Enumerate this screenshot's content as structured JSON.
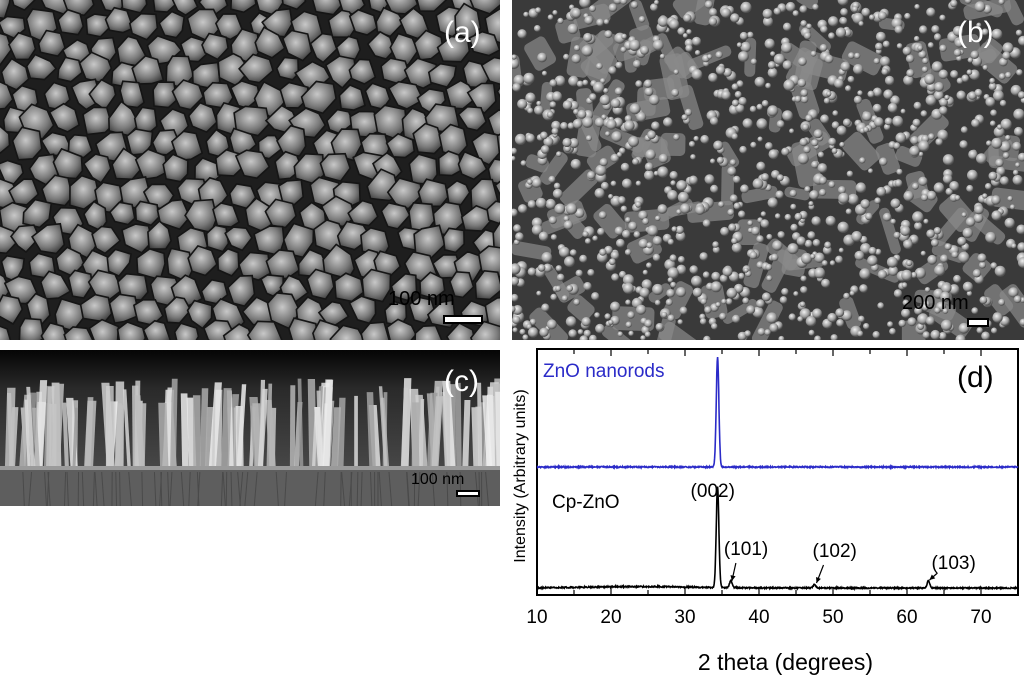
{
  "figure": {
    "panel_a": {
      "label": "(a)",
      "scale_label": "100 nm"
    },
    "panel_b": {
      "label": "(b)",
      "scale_label": "200 nm"
    },
    "panel_c": {
      "label": "(c)",
      "scale_label": "100 nm"
    },
    "panel_d": {
      "label": "(d)"
    }
  },
  "chart_data": {
    "type": "line",
    "xlabel": "2 theta (degrees)",
    "ylabel": "Intensity (Arbitrary units)",
    "xlim": [
      10,
      75
    ],
    "x_ticks": [
      10,
      20,
      30,
      40,
      50,
      60,
      70
    ],
    "y_ticks": false,
    "grid": false,
    "series": [
      {
        "name": "ZnO nanorods",
        "color": "#2b2bc8",
        "peaks": [
          {
            "x": 34.4,
            "y": 1.0
          }
        ]
      },
      {
        "name": "Cp-ZnO",
        "color": "#000000",
        "peaks": [
          {
            "x": 34.4,
            "y": 0.86
          },
          {
            "x": 36.2,
            "y": 0.06
          },
          {
            "x": 47.5,
            "y": 0.03
          },
          {
            "x": 62.9,
            "y": 0.06
          }
        ]
      }
    ],
    "annotations": [
      {
        "text": "(002)",
        "x": 34.4
      },
      {
        "text": "(101)",
        "x": 36.2
      },
      {
        "text": "(102)",
        "x": 47.5
      },
      {
        "text": "(103)",
        "x": 62.9
      }
    ]
  }
}
